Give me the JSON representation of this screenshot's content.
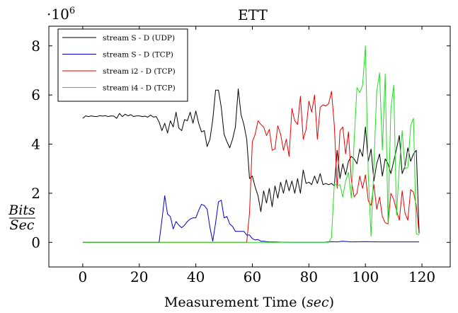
{
  "chart_data": {
    "type": "line",
    "title": "ETT",
    "xlabel_prefix": "Measurement Time (",
    "xlabel_unit": "sec",
    "xlabel_suffix": ")",
    "ylabel_numerator": "Bits",
    "ylabel_denominator": "Sec",
    "y_multiplier_base": "·10",
    "y_multiplier_exp": "6",
    "xlim": [
      -12,
      130
    ],
    "ylim": [
      -1.0,
      8.8
    ],
    "x_ticks": [
      0,
      20,
      40,
      60,
      80,
      100,
      120
    ],
    "y_ticks": [
      0,
      2,
      4,
      6,
      8
    ],
    "grid": false,
    "legend_position": "top-left",
    "series": [
      {
        "name": "stream S - D (UDP)",
        "color": "#000000",
        "x": [
          0,
          1,
          2,
          3,
          4,
          5,
          6,
          7,
          8,
          9,
          10,
          11,
          12,
          13,
          14,
          15,
          16,
          17,
          18,
          19,
          20,
          21,
          22,
          23,
          24,
          25,
          26,
          27,
          28,
          29,
          30,
          31,
          32,
          33,
          34,
          35,
          36,
          37,
          38,
          39,
          40,
          41,
          42,
          43,
          44,
          45,
          46,
          47,
          48,
          49,
          50,
          51,
          52,
          53,
          54,
          55,
          56,
          57,
          58,
          59,
          60,
          61,
          62,
          63,
          64,
          65,
          66,
          67,
          68,
          69,
          70,
          71,
          72,
          73,
          74,
          75,
          76,
          77,
          78,
          79,
          80,
          81,
          82,
          83,
          84,
          85,
          86,
          87,
          88,
          89,
          90,
          91,
          92,
          93,
          94,
          95,
          96,
          97,
          98,
          99,
          100,
          101,
          102,
          103,
          104,
          105,
          106,
          107,
          108,
          109,
          110,
          111,
          112,
          113,
          114,
          115,
          116,
          117,
          118,
          119
        ],
        "values": [
          5.05,
          5.15,
          5.12,
          5.15,
          5.13,
          5.12,
          5.16,
          5.14,
          5.16,
          5.12,
          5.15,
          5.14,
          5.05,
          5.25,
          5.12,
          5.22,
          5.15,
          5.2,
          5.12,
          5.15,
          5.15,
          5.12,
          5.14,
          5.1,
          5.18,
          5.1,
          5.12,
          4.9,
          4.55,
          4.85,
          4.45,
          4.95,
          4.7,
          5.3,
          4.65,
          4.55,
          5.0,
          4.95,
          5.3,
          4.85,
          5.35,
          4.85,
          4.5,
          4.55,
          3.9,
          4.2,
          5.0,
          6.2,
          6.2,
          5.5,
          4.4,
          4.1,
          3.85,
          4.2,
          4.7,
          6.25,
          5.2,
          4.8,
          4.2,
          2.6,
          2.7,
          2.25,
          1.9,
          1.25,
          2.1,
          1.6,
          2.2,
          1.45,
          2.3,
          1.8,
          2.45,
          2.0,
          2.55,
          2.1,
          2.5,
          2.0,
          2.6,
          2.0,
          2.95,
          2.4,
          2.45,
          2.35,
          2.7,
          2.4,
          2.8,
          2.35,
          2.4,
          2.35,
          2.4,
          2.3,
          3.75,
          2.6,
          3.2,
          2.75,
          3.3,
          3.5,
          3.4,
          3.2,
          3.8,
          3.5,
          4.7,
          3.3,
          3.8,
          2.5,
          3.2,
          3.6,
          2.7,
          3.4,
          3.2,
          2.8,
          3.3,
          3.8,
          4.35,
          2.8,
          3.1,
          3.85,
          3.3,
          3.6,
          3.75,
          0.4
        ]
      },
      {
        "name": "stream S - D (TCP)",
        "color": "#0000cc",
        "x": [
          0,
          5,
          10,
          15,
          20,
          25,
          27,
          28,
          29,
          30,
          31,
          32,
          33,
          34,
          35,
          36,
          37,
          38,
          39,
          40,
          41,
          42,
          43,
          44,
          45,
          46,
          47,
          48,
          49,
          50,
          51,
          52,
          53,
          54,
          55,
          56,
          57,
          58,
          59,
          60,
          61,
          62,
          63,
          64,
          65,
          66,
          68,
          70,
          75,
          80,
          85,
          88,
          90,
          92,
          95,
          100,
          105,
          110,
          115,
          119
        ],
        "values": [
          0,
          0,
          0,
          0,
          0,
          0,
          0,
          0.9,
          1.9,
          1.15,
          1.05,
          0.55,
          0.85,
          0.7,
          0.6,
          0.7,
          0.85,
          0.95,
          1.0,
          1.0,
          1.3,
          1.55,
          1.5,
          1.35,
          0.6,
          0.05,
          0.8,
          1.65,
          1.72,
          1.0,
          1.05,
          0.75,
          0.65,
          0.45,
          0.45,
          0.45,
          0.45,
          0.3,
          0.3,
          0.15,
          0.1,
          0.12,
          0.05,
          0.05,
          0.03,
          0.02,
          0.02,
          0.01,
          0,
          0,
          0,
          0.03,
          0.02,
          0.05,
          0.02,
          0.03,
          0.02,
          0.02,
          0.02,
          0.02
        ]
      },
      {
        "name": "stream i2 - D (TCP)",
        "color": "#ee0000",
        "x": [
          0,
          10,
          20,
          30,
          40,
          50,
          55,
          56,
          57,
          58,
          59,
          60,
          61,
          62,
          63,
          64,
          65,
          66,
          67,
          68,
          69,
          70,
          71,
          72,
          73,
          74,
          75,
          76,
          77,
          78,
          79,
          80,
          81,
          82,
          83,
          84,
          85,
          86,
          87,
          88,
          89,
          90,
          91,
          92,
          93,
          94,
          95,
          96,
          97,
          98,
          99,
          100,
          101,
          102,
          103,
          104,
          105,
          106,
          107,
          108,
          109,
          110,
          111,
          112,
          113,
          114,
          115,
          116,
          117,
          118,
          119
        ],
        "values": [
          0,
          0,
          0,
          0,
          0,
          0,
          0,
          0,
          0,
          0,
          1.2,
          4.1,
          4.4,
          4.95,
          4.8,
          4.7,
          4.35,
          4.6,
          3.75,
          3.8,
          4.75,
          4.4,
          3.75,
          4.2,
          3.5,
          5.45,
          4.95,
          4.8,
          5.95,
          4.2,
          4.6,
          5.75,
          5.3,
          6.0,
          4.2,
          5.5,
          5.6,
          5.55,
          5.65,
          6.15,
          4.75,
          2.2,
          4.55,
          4.7,
          3.6,
          4.5,
          2.55,
          1.85,
          2.0,
          2.7,
          2.2,
          2.75,
          1.7,
          1.5,
          2.35,
          1.35,
          1.85,
          1.05,
          0.8,
          0.75,
          2.0,
          1.75,
          1.3,
          0.9,
          2.1,
          1.2,
          0.9,
          2.15,
          2.05,
          1.5,
          0.35
        ]
      },
      {
        "name": "stream i4 - D (TCP)",
        "color": "#22dd22",
        "x": [
          0,
          10,
          20,
          30,
          40,
          50,
          60,
          70,
          80,
          85,
          86,
          87,
          88,
          89,
          90,
          91,
          92,
          93,
          94,
          95,
          96,
          97,
          98,
          99,
          100,
          101,
          102,
          103,
          104,
          105,
          106,
          107,
          108,
          109,
          110,
          111,
          112,
          113,
          114,
          115,
          116,
          117,
          118,
          119
        ],
        "values": [
          0,
          0,
          0,
          0,
          0,
          0,
          0,
          0,
          0,
          0,
          0,
          0,
          0.2,
          2.4,
          2.3,
          2.35,
          1.85,
          2.5,
          2.85,
          1.8,
          4.1,
          6.3,
          6.1,
          6.4,
          8.0,
          2.8,
          0.25,
          3.15,
          6.15,
          6.9,
          3.75,
          6.85,
          0.8,
          5.45,
          6.4,
          1.1,
          3.1,
          4.55,
          3.0,
          3.05,
          4.75,
          5.05,
          0.35,
          0.3
        ]
      }
    ]
  }
}
